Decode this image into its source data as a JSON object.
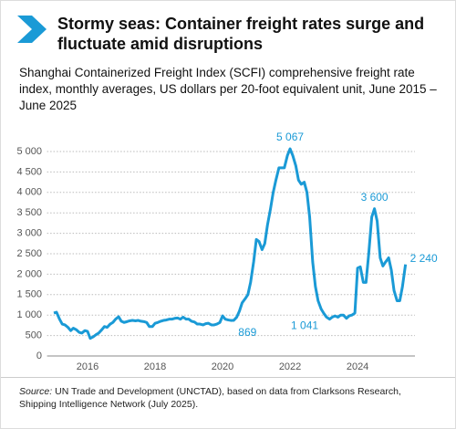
{
  "chart_data": {
    "type": "line",
    "title": "Stormy seas: Container freight rates surge and fluctuate amid disruptions",
    "subtitle": "Shanghai Containerized Freight Index (SCFI) comprehensive freight rate index, monthly averages, US dollars per 20-foot equivalent unit, June 2015 – June 2025",
    "source": {
      "label": "Source:",
      "text": "UN Trade and Development (UNCTAD), based on data from Clarksons Research, Shipping Intelligence Network (July 2025)."
    },
    "x": [
      2015.0,
      2015.08,
      2015.17,
      2015.25,
      2015.33,
      2015.42,
      2015.5,
      2015.58,
      2015.67,
      2015.75,
      2015.83,
      2015.92,
      2016.0,
      2016.08,
      2016.17,
      2016.25,
      2016.33,
      2016.42,
      2016.5,
      2016.58,
      2016.67,
      2016.75,
      2016.83,
      2016.92,
      2017.0,
      2017.08,
      2017.17,
      2017.25,
      2017.33,
      2017.42,
      2017.5,
      2017.58,
      2017.67,
      2017.75,
      2017.83,
      2017.92,
      2018.0,
      2018.08,
      2018.17,
      2018.25,
      2018.33,
      2018.42,
      2018.5,
      2018.58,
      2018.67,
      2018.75,
      2018.83,
      2018.92,
      2019.0,
      2019.08,
      2019.17,
      2019.25,
      2019.33,
      2019.42,
      2019.5,
      2019.58,
      2019.67,
      2019.75,
      2019.83,
      2019.92,
      2020.0,
      2020.08,
      2020.17,
      2020.25,
      2020.33,
      2020.42,
      2020.5,
      2020.58,
      2020.67,
      2020.75,
      2020.83,
      2020.92,
      2021.0,
      2021.08,
      2021.17,
      2021.25,
      2021.33,
      2021.42,
      2021.5,
      2021.58,
      2021.67,
      2021.75,
      2021.83,
      2021.92,
      2022.0,
      2022.08,
      2022.17,
      2022.25,
      2022.33,
      2022.42,
      2022.5,
      2022.58,
      2022.67,
      2022.75,
      2022.83,
      2022.92,
      2023.0,
      2023.08,
      2023.17,
      2023.25,
      2023.33,
      2023.42,
      2023.5,
      2023.58,
      2023.67,
      2023.75,
      2023.83,
      2023.92,
      2024.0,
      2024.08,
      2024.17,
      2024.25,
      2024.33,
      2024.42,
      2024.5,
      2024.58,
      2024.67,
      2024.75,
      2024.83,
      2024.92,
      2025.0,
      2025.08,
      2025.17,
      2025.25,
      2025.33,
      2025.42
    ],
    "series": [
      {
        "name": "SCFI",
        "color": "#1a9ad6",
        "values": [
          1050,
          1070,
          900,
          780,
          760,
          700,
          620,
          680,
          640,
          580,
          560,
          620,
          600,
          430,
          470,
          520,
          560,
          640,
          720,
          700,
          780,
          820,
          900,
          960,
          850,
          820,
          840,
          860,
          870,
          860,
          870,
          850,
          840,
          820,
          720,
          720,
          800,
          820,
          850,
          870,
          880,
          900,
          900,
          920,
          930,
          900,
          950,
          900,
          900,
          850,
          830,
          780,
          780,
          760,
          790,
          800,
          760,
          760,
          780,
          820,
          980,
          900,
          880,
          869,
          870,
          950,
          1100,
          1300,
          1400,
          1500,
          1800,
          2300,
          2850,
          2800,
          2600,
          2750,
          3200,
          3600,
          4000,
          4300,
          4600,
          4600,
          4600,
          4900,
          5067,
          4900,
          4650,
          4300,
          4200,
          4250,
          4000,
          3400,
          2300,
          1700,
          1350,
          1150,
          1041,
          950,
          900,
          950,
          980,
          950,
          1000,
          1000,
          920,
          980,
          1000,
          1050,
          2150,
          2180,
          1800,
          1800,
          2500,
          3400,
          3600,
          3300,
          2400,
          2200,
          2300,
          2400,
          2100,
          1600,
          1350,
          1350,
          1700,
          2240
        ],
        "value_labels": [
          null,
          null,
          null,
          null,
          null,
          null,
          null,
          null,
          null,
          null,
          null,
          null,
          null,
          null,
          null,
          null,
          null,
          null,
          null,
          null,
          null,
          null,
          null,
          null,
          null,
          null,
          null,
          null,
          null,
          null,
          null,
          null,
          null,
          null,
          null,
          null,
          null,
          null,
          null,
          null,
          null,
          null,
          null,
          null,
          null,
          null,
          null,
          null,
          null,
          null,
          null,
          null,
          null,
          null,
          null,
          null,
          null,
          null,
          null,
          null,
          null,
          null,
          null,
          "869",
          null,
          null,
          null,
          null,
          null,
          null,
          null,
          null,
          null,
          null,
          null,
          null,
          null,
          null,
          null,
          null,
          null,
          null,
          null,
          null,
          "5 067",
          null,
          null,
          null,
          null,
          null,
          null,
          null,
          null,
          null,
          null,
          null,
          "1 041",
          null,
          null,
          null,
          null,
          null,
          null,
          null,
          null,
          null,
          null,
          null,
          null,
          null,
          null,
          null,
          null,
          null,
          "3 600",
          null,
          null,
          null,
          null,
          null,
          null,
          null,
          null,
          null,
          null,
          "2 240"
        ]
      }
    ],
    "xlim": [
      2014.8,
      2025.7
    ],
    "xticks": [
      2016,
      2018,
      2020,
      2022,
      2024
    ],
    "ylim": [
      0,
      5300
    ],
    "yticks": [
      0,
      {
        "value": 500,
        "label": "500"
      },
      {
        "value": 1000,
        "label": "1 000"
      },
      {
        "value": 1500,
        "label": "1 500"
      },
      {
        "value": 2000,
        "label": "2 000"
      },
      {
        "value": 2500,
        "label": "2 500"
      },
      {
        "value": 3000,
        "label": "3 000"
      },
      {
        "value": 3500,
        "label": "3 500"
      },
      {
        "value": 4000,
        "label": "4 000"
      },
      {
        "value": 4500,
        "label": "4 500"
      },
      {
        "value": 5000,
        "label": "5 000"
      }
    ],
    "grid": true
  }
}
